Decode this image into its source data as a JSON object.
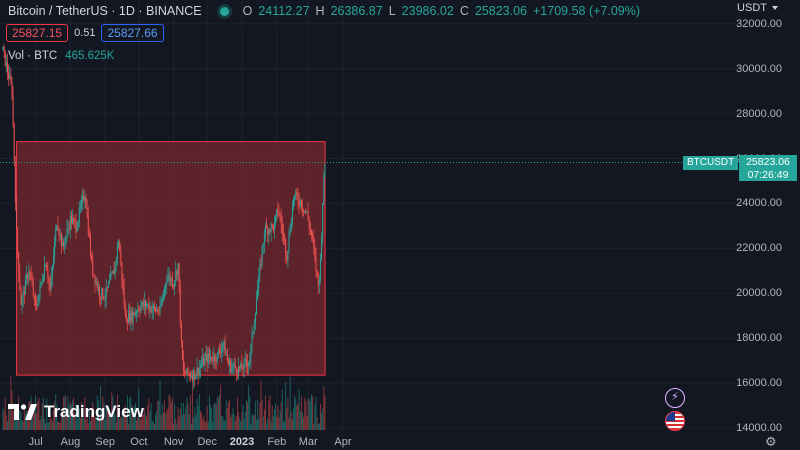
{
  "header": {
    "symbol": "Bitcoin / TetherUS · 1D · BINANCE",
    "o_label": "O",
    "o_value": "24112.27",
    "h_label": "H",
    "h_value": "26386.87",
    "l_label": "L",
    "l_value": "23986.02",
    "c_label": "C",
    "c_value": "25823.06",
    "change": "+1709.58 (+7.09%)"
  },
  "trade": {
    "sell_price": "25827.15",
    "spread": "0.51",
    "buy_price": "25827.66"
  },
  "volume": {
    "label": "Vol · BTC",
    "value": "465.625K"
  },
  "price_axis": {
    "currency": "USDT",
    "ticks": [
      "32000.00",
      "30000.00",
      "28000.00",
      "26000.00",
      "24000.00",
      "22000.00",
      "20000.00",
      "18000.00",
      "16000.00",
      "14000.00"
    ]
  },
  "time_axis": {
    "labels": [
      "Jul",
      "Aug",
      "Sep",
      "Oct",
      "Nov",
      "Dec",
      "2023",
      "Feb",
      "Mar",
      "Apr"
    ]
  },
  "last_price": {
    "symbol": "BTCUSDT",
    "price": "25823.06",
    "countdown": "07:26:49"
  },
  "branding": {
    "logo_text": "TradingView"
  },
  "icons": {
    "live": "live-dot-icon",
    "bolt": "lightning-icon",
    "flag": "us-flag-icon",
    "gear": "gear-icon",
    "currency_dropdown": "chevron-down-icon"
  },
  "colors": {
    "background": "#131722",
    "up": "#26a69a",
    "down": "#ef5350",
    "range_fill": "#8b2a2e",
    "range_border": "#f23645"
  },
  "chart_data": {
    "type": "candlestick",
    "ylim": [
      14000,
      33000
    ],
    "range_box": {
      "y_top": 26750,
      "y_bottom": 16350,
      "x_start": "2022-06-14",
      "x_end": "2023-03-16"
    },
    "series_points": [
      [
        "2022-06-01",
        31000
      ],
      [
        "2022-06-10",
        29000
      ],
      [
        "2022-06-14",
        22500
      ],
      [
        "2022-06-18",
        19500
      ],
      [
        "2022-06-25",
        21100
      ],
      [
        "2022-07-01",
        19300
      ],
      [
        "2022-07-05",
        20200
      ],
      [
        "2022-07-10",
        21500
      ],
      [
        "2022-07-14",
        20100
      ],
      [
        "2022-07-20",
        23300
      ],
      [
        "2022-07-25",
        22000
      ],
      [
        "2022-08-01",
        23300
      ],
      [
        "2022-08-06",
        23000
      ],
      [
        "2022-08-14",
        24500
      ],
      [
        "2022-08-20",
        21200
      ],
      [
        "2022-08-27",
        20000
      ],
      [
        "2022-09-01",
        19900
      ],
      [
        "2022-09-09",
        21000
      ],
      [
        "2022-09-13",
        22400
      ],
      [
        "2022-09-19",
        18900
      ],
      [
        "2022-09-25",
        19000
      ],
      [
        "2022-10-01",
        19400
      ],
      [
        "2022-10-08",
        19500
      ],
      [
        "2022-10-13",
        19300
      ],
      [
        "2022-10-20",
        19200
      ],
      [
        "2022-10-26",
        20800
      ],
      [
        "2022-11-01",
        20500
      ],
      [
        "2022-11-05",
        21300
      ],
      [
        "2022-11-08",
        17500
      ],
      [
        "2022-11-10",
        16400
      ],
      [
        "2022-11-20",
        16400
      ],
      [
        "2022-11-30",
        17100
      ],
      [
        "2022-12-10",
        17200
      ],
      [
        "2022-12-15",
        17800
      ],
      [
        "2022-12-20",
        16800
      ],
      [
        "2022-12-31",
        16600
      ],
      [
        "2023-01-08",
        17100
      ],
      [
        "2023-01-14",
        19800
      ],
      [
        "2023-01-21",
        22800
      ],
      [
        "2023-01-30",
        23000
      ],
      [
        "2023-02-02",
        23800
      ],
      [
        "2023-02-10",
        21700
      ],
      [
        "2023-02-16",
        24300
      ],
      [
        "2023-02-22",
        24100
      ],
      [
        "2023-02-28",
        23500
      ],
      [
        "2023-03-05",
        22300
      ],
      [
        "2023-03-10",
        20300
      ],
      [
        "2023-03-12",
        21500
      ],
      [
        "2023-03-14",
        24300
      ],
      [
        "2023-03-16",
        25823.06
      ]
    ]
  }
}
